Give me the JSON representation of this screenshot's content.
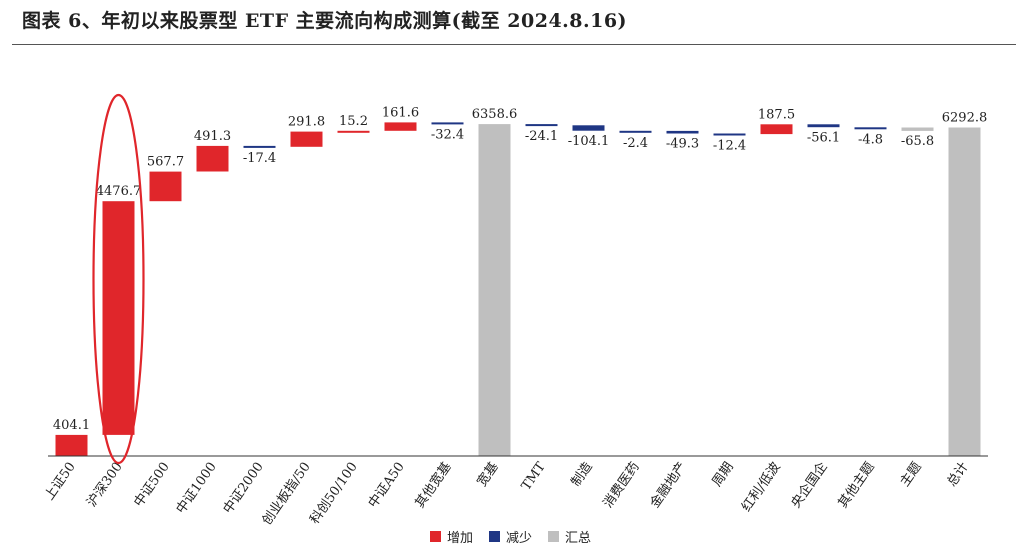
{
  "title": "图表 6、年初以来股票型 ETF 主要流向构成测算(截至 2024.8.16)",
  "colors": {
    "increase": "#e0262b",
    "decrease": "#1f3684",
    "total": "#bfbfbf",
    "highlight_ring": "#e0262b",
    "axis": "#333333"
  },
  "chart_data": {
    "type": "bar",
    "subtype": "waterfall",
    "title": "",
    "xlabel": "",
    "ylabel": "",
    "categories": [
      "上证50",
      "沪深300",
      "中证500",
      "中证1000",
      "中证2000",
      "创业板指/50",
      "科创50/100",
      "中证A50",
      "其他宽基",
      "宽基",
      "TMT",
      "制造",
      "消费医药",
      "金融地产",
      "周期",
      "红利/低波",
      "央企国企",
      "其他主题",
      "主题",
      "总计"
    ],
    "values": [
      404.1,
      4476.7,
      567.7,
      491.3,
      -17.4,
      291.8,
      15.2,
      161.6,
      -32.4,
      6358.6,
      -24.1,
      -104.1,
      -2.4,
      -49.3,
      -12.4,
      187.5,
      -56.1,
      -4.8,
      -65.8,
      6292.8
    ],
    "labels": [
      "404.1",
      "4476.7",
      "567.7",
      "491.3",
      "-17.4",
      "291.8",
      "15.2",
      "161.6",
      "-32.4",
      "6358.6",
      "-24.1",
      "-104.1",
      "-2.4",
      "-49.3",
      "-12.4",
      "187.5",
      "-56.1",
      "-4.8",
      "-65.8",
      "6292.8"
    ],
    "total_indices": [
      9,
      18,
      19
    ],
    "legend": [
      {
        "key": "increase",
        "label": "增加"
      },
      {
        "key": "decrease",
        "label": "减少"
      },
      {
        "key": "total",
        "label": "汇总"
      }
    ],
    "highlighted_category": "沪深300",
    "grid": false,
    "legend_position": "bottom"
  }
}
